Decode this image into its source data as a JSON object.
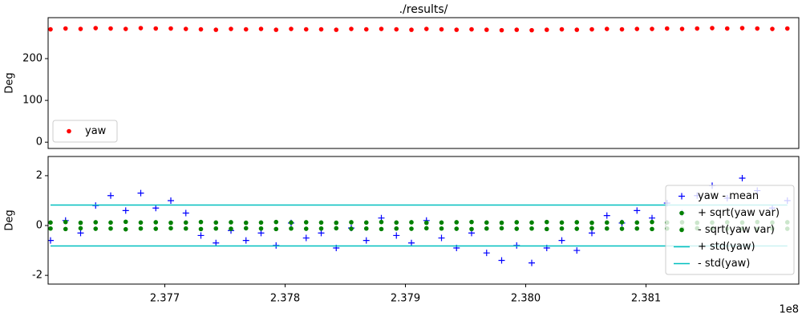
{
  "chart_data": [
    {
      "type": "scatter",
      "title": "./results/",
      "ylabel": "Deg",
      "x": [
        237605000,
        237617500,
        237630000,
        237642500,
        237655000,
        237667500,
        237680000,
        237692500,
        237705000,
        237717500,
        237730000,
        237742500,
        237755000,
        237767500,
        237780000,
        237792500,
        237805000,
        237817500,
        237830000,
        237842500,
        237855000,
        237867500,
        237880000,
        237892500,
        237905000,
        237917500,
        237930000,
        237942500,
        237955000,
        237967500,
        237980000,
        237992500,
        238005000,
        238017500,
        238030000,
        238042500,
        238055000,
        238067500,
        238080000,
        238092500,
        238105000,
        238117500,
        238130000,
        238142500,
        238155000,
        238167500,
        238180000,
        238192500,
        238205000,
        238217500
      ],
      "series": [
        {
          "name": "yaw",
          "color": "#ff0000",
          "marker": "dot",
          "values": [
            270,
            272,
            271,
            273,
            272,
            271,
            273,
            272,
            272,
            271,
            270,
            269,
            271,
            270,
            271,
            269,
            271,
            270,
            270,
            269,
            271,
            270,
            271,
            270,
            269,
            271,
            270,
            269,
            270,
            269,
            268,
            269,
            268,
            269,
            270,
            269,
            270,
            271,
            270,
            271,
            271,
            272,
            271,
            272,
            273,
            272,
            273,
            272,
            271,
            272
          ]
        }
      ],
      "xlim": [
        237603000,
        238227000
      ],
      "ylim": [
        -15,
        298
      ],
      "yticks": [
        0,
        100,
        200
      ],
      "legend": "lower left"
    },
    {
      "type": "scatter",
      "ylabel": "Deg",
      "x_offset_label": "1e8",
      "x": [
        237605000,
        237617500,
        237630000,
        237642500,
        237655000,
        237667500,
        237680000,
        237692500,
        237705000,
        237717500,
        237730000,
        237742500,
        237755000,
        237767500,
        237780000,
        237792500,
        237805000,
        237817500,
        237830000,
        237842500,
        237855000,
        237867500,
        237880000,
        237892500,
        237905000,
        237917500,
        237930000,
        237942500,
        237955000,
        237967500,
        237980000,
        237992500,
        238005000,
        238017500,
        238030000,
        238042500,
        238055000,
        238067500,
        238080000,
        238092500,
        238105000,
        238117500,
        238130000,
        238142500,
        238155000,
        238167500,
        238180000,
        238192500,
        238205000,
        238217500
      ],
      "series": [
        {
          "name": "yaw - mean",
          "color": "#0000ff",
          "marker": "plus",
          "values": [
            -0.6,
            0.2,
            -0.3,
            0.8,
            1.2,
            0.6,
            1.3,
            0.7,
            1.0,
            0.5,
            -0.4,
            -0.7,
            -0.2,
            -0.6,
            -0.3,
            -0.8,
            0.1,
            -0.5,
            -0.3,
            -0.9,
            -0.1,
            -0.6,
            0.3,
            -0.4,
            -0.7,
            0.2,
            -0.5,
            -0.9,
            -0.3,
            -1.1,
            -1.4,
            -0.8,
            -1.5,
            -0.9,
            -0.6,
            -1.0,
            -0.3,
            0.4,
            0.1,
            0.6,
            0.3,
            0.9,
            0.5,
            1.2,
            1.6,
            1.1,
            1.9,
            1.4,
            0.7,
            1.0
          ]
        },
        {
          "name": "+ sqrt(yaw var)",
          "color": "#008000",
          "marker": "dot",
          "values": [
            0.12,
            0.14,
            0.11,
            0.13,
            0.12,
            0.15,
            0.12,
            0.13,
            0.11,
            0.12,
            0.14,
            0.12,
            0.13,
            0.11,
            0.12,
            0.14,
            0.12,
            0.13,
            0.12,
            0.11,
            0.13,
            0.12,
            0.14,
            0.12,
            0.13,
            0.11,
            0.12,
            0.13,
            0.14,
            0.12,
            0.11,
            0.13,
            0.12,
            0.14,
            0.12,
            0.13,
            0.11,
            0.12,
            0.13,
            0.12,
            0.14,
            0.12,
            0.13,
            0.11,
            0.12,
            0.13,
            0.12,
            0.14,
            0.12,
            0.13
          ]
        },
        {
          "name": "- sqrt(yaw var)",
          "color": "#008000",
          "marker": "dot",
          "values": [
            -0.12,
            -0.14,
            -0.11,
            -0.13,
            -0.12,
            -0.15,
            -0.12,
            -0.13,
            -0.11,
            -0.12,
            -0.14,
            -0.12,
            -0.13,
            -0.11,
            -0.12,
            -0.14,
            -0.12,
            -0.13,
            -0.12,
            -0.11,
            -0.13,
            -0.12,
            -0.14,
            -0.12,
            -0.13,
            -0.11,
            -0.12,
            -0.13,
            -0.14,
            -0.12,
            -0.11,
            -0.13,
            -0.12,
            -0.14,
            -0.12,
            -0.13,
            -0.11,
            -0.12,
            -0.13,
            -0.12,
            -0.14,
            -0.12,
            -0.13,
            -0.11,
            -0.12,
            -0.13,
            -0.12,
            -0.14,
            -0.12,
            -0.13
          ]
        },
        {
          "name": "+ std(yaw)",
          "color": "#00bfbf",
          "marker": "line",
          "values": [
            0.82,
            0.82,
            0.82,
            0.82,
            0.82,
            0.82,
            0.82,
            0.82,
            0.82,
            0.82,
            0.82,
            0.82,
            0.82,
            0.82,
            0.82,
            0.82,
            0.82,
            0.82,
            0.82,
            0.82,
            0.82,
            0.82,
            0.82,
            0.82,
            0.82,
            0.82,
            0.82,
            0.82,
            0.82,
            0.82,
            0.82,
            0.82,
            0.82,
            0.82,
            0.82,
            0.82,
            0.82,
            0.82,
            0.82,
            0.82,
            0.82,
            0.82,
            0.82,
            0.82,
            0.82,
            0.82,
            0.82,
            0.82,
            0.82,
            0.82
          ]
        },
        {
          "name": "- std(yaw)",
          "color": "#00bfbf",
          "marker": "line",
          "values": [
            -0.82,
            -0.82,
            -0.82,
            -0.82,
            -0.82,
            -0.82,
            -0.82,
            -0.82,
            -0.82,
            -0.82,
            -0.82,
            -0.82,
            -0.82,
            -0.82,
            -0.82,
            -0.82,
            -0.82,
            -0.82,
            -0.82,
            -0.82,
            -0.82,
            -0.82,
            -0.82,
            -0.82,
            -0.82,
            -0.82,
            -0.82,
            -0.82,
            -0.82,
            -0.82,
            -0.82,
            -0.82,
            -0.82,
            -0.82,
            -0.82,
            -0.82,
            -0.82,
            -0.82,
            -0.82,
            -0.82,
            -0.82,
            -0.82,
            -0.82,
            -0.82,
            -0.82,
            -0.82,
            -0.82,
            -0.82,
            -0.82,
            -0.82
          ]
        }
      ],
      "xlim": [
        237603000,
        238227000
      ],
      "ylim": [
        -2.35,
        2.77
      ],
      "yticks": [
        -2,
        0,
        2
      ],
      "xticks": [
        {
          "value": 237700000,
          "label": "2.377"
        },
        {
          "value": 237800000,
          "label": "2.378"
        },
        {
          "value": 237900000,
          "label": "2.379"
        },
        {
          "value": 238000000,
          "label": "2.380"
        },
        {
          "value": 238100000,
          "label": "2.381"
        }
      ],
      "legend": "center right"
    }
  ]
}
